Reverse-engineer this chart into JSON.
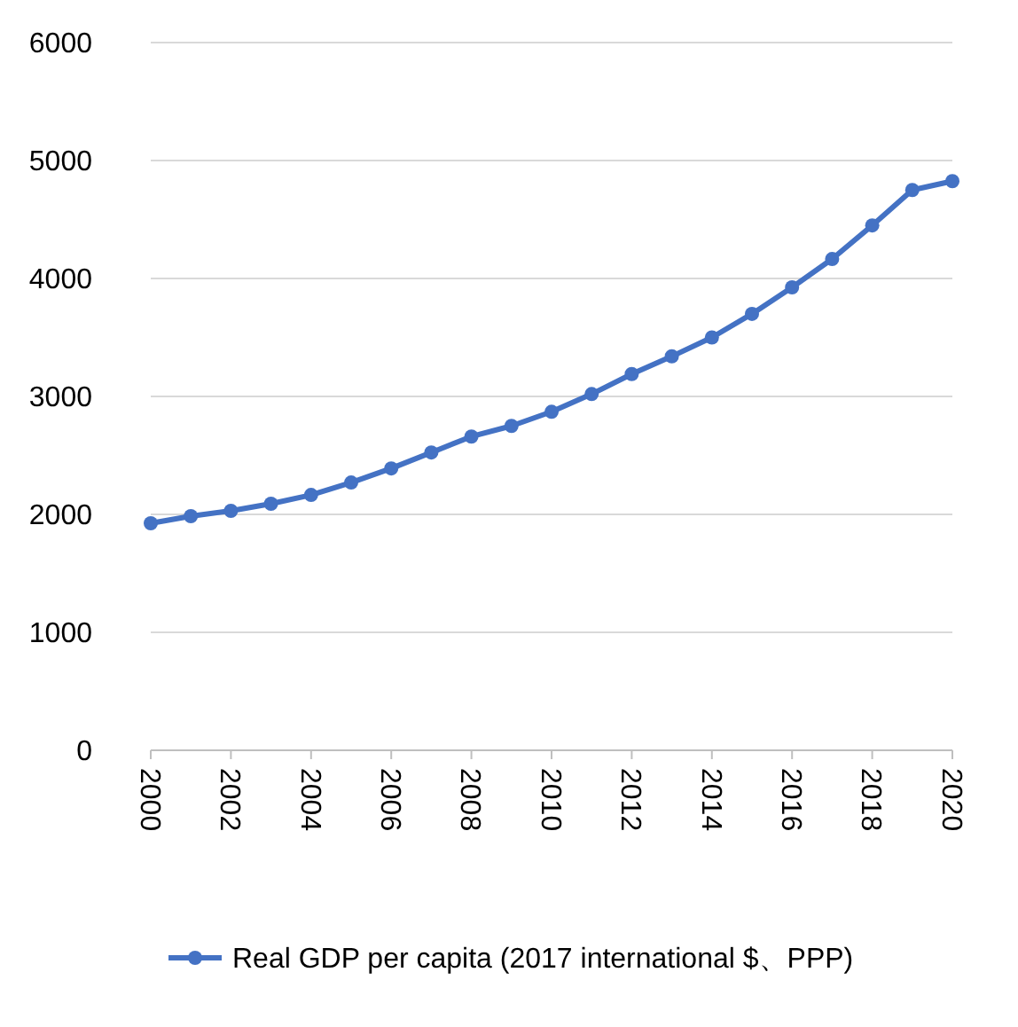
{
  "chart_data": {
    "type": "line",
    "x": [
      2000,
      2001,
      2002,
      2003,
      2004,
      2005,
      2006,
      2007,
      2008,
      2009,
      2010,
      2011,
      2012,
      2013,
      2014,
      2015,
      2016,
      2017,
      2018,
      2019,
      2020
    ],
    "series": [
      {
        "name": "Real GDP per capita (2017 international $、PPP)",
        "color": "#4472c4",
        "values": [
          1925,
          1985,
          2030,
          2090,
          2165,
          2270,
          2390,
          2525,
          2660,
          2750,
          2870,
          3020,
          3190,
          3340,
          3500,
          3700,
          3925,
          4165,
          4450,
          4750,
          4825
        ]
      }
    ],
    "xlim": [
      2000,
      2020
    ],
    "xticks": [
      2000,
      2002,
      2004,
      2006,
      2008,
      2010,
      2012,
      2014,
      2016,
      2018,
      2020
    ],
    "ylim": [
      0,
      6000
    ],
    "yticks": [
      0,
      1000,
      2000,
      3000,
      4000,
      5000,
      6000
    ],
    "grid": "y",
    "legend": "bottom",
    "marker": "circle",
    "line_style": "solid"
  }
}
